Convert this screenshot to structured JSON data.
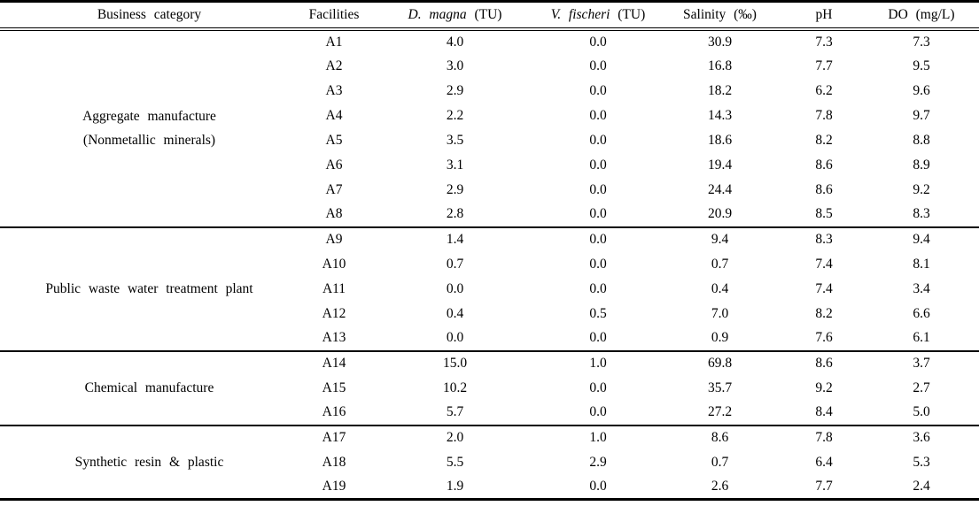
{
  "table": {
    "columns": [
      {
        "label": "Business category"
      },
      {
        "label": "Facilities"
      },
      {
        "em": "D. magna",
        "rest": " (TU)"
      },
      {
        "em": "V. fischeri",
        "rest": " (TU)"
      },
      {
        "label": "Salinity (‰)"
      },
      {
        "label": "pH"
      },
      {
        "label": "DO (mg/L)"
      }
    ],
    "groups": [
      {
        "category": [
          "Aggregate manufacture",
          "(Nonmetallic minerals)"
        ],
        "rows": [
          {
            "facility": "A1",
            "d_magna": "4.0",
            "v_fischeri": "0.0",
            "salinity": "30.9",
            "ph": "7.3",
            "do": "7.3"
          },
          {
            "facility": "A2",
            "d_magna": "3.0",
            "v_fischeri": "0.0",
            "salinity": "16.8",
            "ph": "7.7",
            "do": "9.5"
          },
          {
            "facility": "A3",
            "d_magna": "2.9",
            "v_fischeri": "0.0",
            "salinity": "18.2",
            "ph": "6.2",
            "do": "9.6"
          },
          {
            "facility": "A4",
            "d_magna": "2.2",
            "v_fischeri": "0.0",
            "salinity": "14.3",
            "ph": "7.8",
            "do": "9.7"
          },
          {
            "facility": "A5",
            "d_magna": "3.5",
            "v_fischeri": "0.0",
            "salinity": "18.6",
            "ph": "8.2",
            "do": "8.8"
          },
          {
            "facility": "A6",
            "d_magna": "3.1",
            "v_fischeri": "0.0",
            "salinity": "19.4",
            "ph": "8.6",
            "do": "8.9"
          },
          {
            "facility": "A7",
            "d_magna": "2.9",
            "v_fischeri": "0.0",
            "salinity": "24.4",
            "ph": "8.6",
            "do": "9.2"
          },
          {
            "facility": "A8",
            "d_magna": "2.8",
            "v_fischeri": "0.0",
            "salinity": "20.9",
            "ph": "8.5",
            "do": "8.3"
          }
        ]
      },
      {
        "category": [
          "Public waste water treatment plant"
        ],
        "rows": [
          {
            "facility": "A9",
            "d_magna": "1.4",
            "v_fischeri": "0.0",
            "salinity": "9.4",
            "ph": "8.3",
            "do": "9.4"
          },
          {
            "facility": "A10",
            "d_magna": "0.7",
            "v_fischeri": "0.0",
            "salinity": "0.7",
            "ph": "7.4",
            "do": "8.1"
          },
          {
            "facility": "A11",
            "d_magna": "0.0",
            "v_fischeri": "0.0",
            "salinity": "0.4",
            "ph": "7.4",
            "do": "3.4"
          },
          {
            "facility": "A12",
            "d_magna": "0.4",
            "v_fischeri": "0.5",
            "salinity": "7.0",
            "ph": "8.2",
            "do": "6.6"
          },
          {
            "facility": "A13",
            "d_magna": "0.0",
            "v_fischeri": "0.0",
            "salinity": "0.9",
            "ph": "7.6",
            "do": "6.1"
          }
        ]
      },
      {
        "category": [
          "Chemical manufacture"
        ],
        "rows": [
          {
            "facility": "A14",
            "d_magna": "15.0",
            "v_fischeri": "1.0",
            "salinity": "69.8",
            "ph": "8.6",
            "do": "3.7"
          },
          {
            "facility": "A15",
            "d_magna": "10.2",
            "v_fischeri": "0.0",
            "salinity": "35.7",
            "ph": "9.2",
            "do": "2.7"
          },
          {
            "facility": "A16",
            "d_magna": "5.7",
            "v_fischeri": "0.0",
            "salinity": "27.2",
            "ph": "8.4",
            "do": "5.0"
          }
        ]
      },
      {
        "category": [
          "Synthetic resin & plastic"
        ],
        "rows": [
          {
            "facility": "A17",
            "d_magna": "2.0",
            "v_fischeri": "1.0",
            "salinity": "8.6",
            "ph": "7.8",
            "do": "3.6"
          },
          {
            "facility": "A18",
            "d_magna": "5.5",
            "v_fischeri": "2.9",
            "salinity": "0.7",
            "ph": "6.4",
            "do": "5.3"
          },
          {
            "facility": "A19",
            "d_magna": "1.9",
            "v_fischeri": "0.0",
            "salinity": "2.6",
            "ph": "7.7",
            "do": "2.4"
          }
        ]
      }
    ]
  }
}
